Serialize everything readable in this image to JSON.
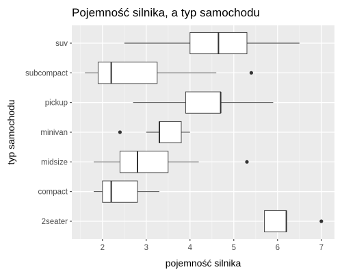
{
  "chart_data": {
    "type": "boxplot",
    "orientation": "horizontal",
    "title": "Pojemność silnika, a typ samochodu",
    "xlabel": "pojemność silnika",
    "ylabel": "typ samochodu",
    "xlim": [
      1.3,
      7.3
    ],
    "xticks": [
      "2",
      "3",
      "4",
      "5",
      "6",
      "7"
    ],
    "grid": true,
    "legend": "none",
    "colors": {
      "panel": "#ebebeb",
      "grid_major": "#ffffff",
      "grid_minor": "#f5f5f5",
      "box_fill": "#ffffff",
      "box_stroke": "#333333"
    },
    "categories": [
      "suv",
      "subcompact",
      "pickup",
      "minivan",
      "midsize",
      "compact",
      "2seater"
    ],
    "boxes": [
      {
        "category": "suv",
        "whisker_low": 2.5,
        "q1": 4.0,
        "median": 4.65,
        "q3": 5.3,
        "whisker_high": 6.5,
        "outliers": []
      },
      {
        "category": "subcompact",
        "whisker_low": 1.6,
        "q1": 1.9,
        "median": 2.2,
        "q3": 3.25,
        "whisker_high": 4.6,
        "outliers": [
          5.4
        ]
      },
      {
        "category": "pickup",
        "whisker_low": 2.7,
        "q1": 3.9,
        "median": 4.7,
        "q3": 4.7,
        "whisker_high": 5.9,
        "outliers": []
      },
      {
        "category": "minivan",
        "whisker_low": 3.0,
        "q1": 3.3,
        "median": 3.3,
        "q3": 3.8,
        "whisker_high": 4.0,
        "outliers": [
          2.4
        ]
      },
      {
        "category": "midsize",
        "whisker_low": 1.8,
        "q1": 2.4,
        "median": 2.8,
        "q3": 3.5,
        "whisker_high": 4.2,
        "outliers": [
          5.3
        ]
      },
      {
        "category": "compact",
        "whisker_low": 1.8,
        "q1": 2.0,
        "median": 2.2,
        "q3": 2.8,
        "whisker_high": 3.3,
        "outliers": []
      },
      {
        "category": "2seater",
        "whisker_low": 5.7,
        "q1": 5.7,
        "median": 6.2,
        "q3": 6.2,
        "whisker_high": 6.2,
        "outliers": [
          7.0
        ]
      }
    ]
  }
}
